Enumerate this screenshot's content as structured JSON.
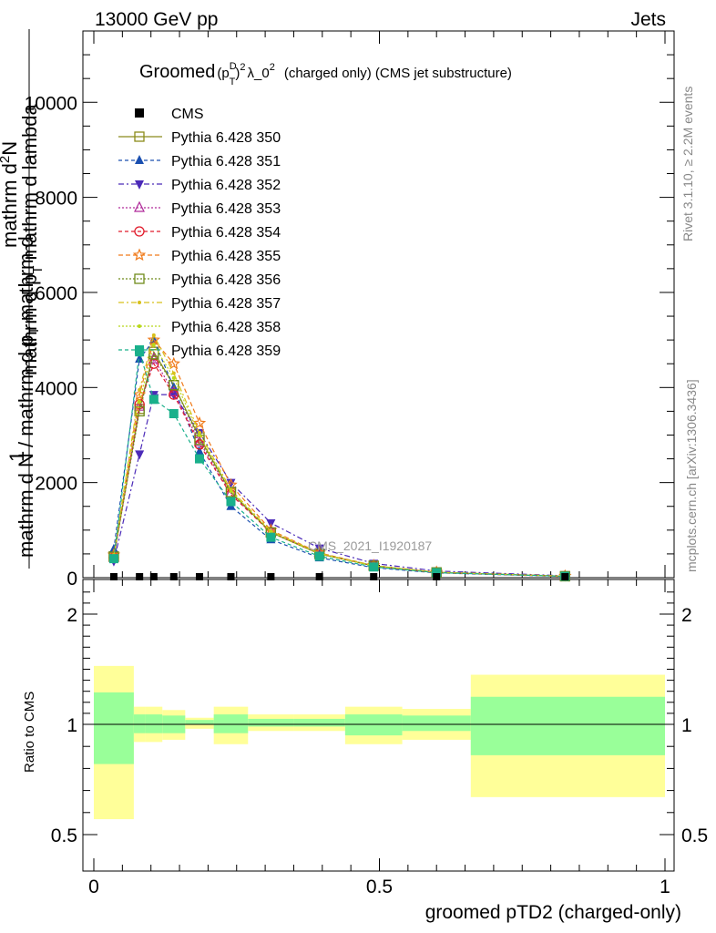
{
  "header": {
    "left": "13000 GeV pp",
    "right": "Jets"
  },
  "plot_title": {
    "prefix": "Groomed",
    "formula": "(p",
    "sup_D": "D",
    "sub_T": "T",
    "close": ")",
    "sup_2": "2",
    "lambda": "λ_0",
    "sup_2b": "2",
    "suffix": "(charged only) (CMS jet substructure)"
  },
  "side_labels": {
    "rivet": "Rivet 3.1.10, ≥ 2.2M events",
    "mcplots": "mcplots.cern.ch [arXiv:1306.3436]"
  },
  "watermark": "CMS_2021_I1920187",
  "y_axis_main": {
    "numerator_one": "1",
    "line1": "mathrm d",
    "sup2": "2",
    "line1b": "N",
    "line2": "mathrm d p",
    "line2sub": "T",
    "line2b": " mathrm d lambda",
    "den_line1": "mathrm d N / mathrm d p",
    "den_sub": "T",
    "den_line1b": " mathrm d"
  },
  "ratio_axis": {
    "label": "Ratio to CMS"
  },
  "x_axis": {
    "label": "groomed pTD2 (charged-only)"
  },
  "legend": [
    {
      "label": "CMS",
      "color": "#000000",
      "marker": "square-filled",
      "dash": "none"
    },
    {
      "label": "Pythia 6.428 350",
      "color": "#8b8b1a",
      "marker": "square-open",
      "dash": "solid"
    },
    {
      "label": "Pythia 6.428 351",
      "color": "#1a4fb0",
      "marker": "triangle-up",
      "dash": "4,3"
    },
    {
      "label": "Pythia 6.428 352",
      "color": "#4b2ab8",
      "marker": "triangle-down",
      "dash": "6,3,2,3"
    },
    {
      "label": "Pythia 6.428 353",
      "color": "#b02a9a",
      "marker": "triangle-up-open",
      "dash": "2,2"
    },
    {
      "label": "Pythia 6.428 354",
      "color": "#e01a2a",
      "marker": "circle-open",
      "dash": "4,3"
    },
    {
      "label": "Pythia 6.428 355",
      "color": "#f07a1a",
      "marker": "star",
      "dash": "5,3"
    },
    {
      "label": "Pythia 6.428 356",
      "color": "#6f8b1a",
      "marker": "square-open",
      "dash": "2,2"
    },
    {
      "label": "Pythia 6.428 357",
      "color": "#d8c01a",
      "marker": "dot",
      "dash": "6,3,2,3"
    },
    {
      "label": "Pythia 6.428 358",
      "color": "#b8d81a",
      "marker": "dot",
      "dash": "2,2"
    },
    {
      "label": "Pythia 6.428 359",
      "color": "#1ab08b",
      "marker": "square-filled",
      "dash": "4,3"
    }
  ],
  "chart_data": {
    "type": "line",
    "x": [
      0.035,
      0.08,
      0.105,
      0.14,
      0.185,
      0.24,
      0.31,
      0.395,
      0.49,
      0.6,
      0.825
    ],
    "ylim": [
      0,
      11500
    ],
    "xlim": [
      -0.03,
      1.0
    ],
    "y_ticks": [
      0,
      2000,
      4000,
      6000,
      8000,
      10000
    ],
    "y_tick_labels": [
      "0",
      "2000",
      "4000",
      "6000",
      "8000",
      "10000"
    ],
    "x_ticks": [
      0,
      0.5,
      1
    ],
    "x_tick_labels": [
      "0",
      "0.5",
      "1"
    ],
    "cms_values": [
      20,
      20,
      20,
      20,
      20,
      20,
      20,
      20,
      20,
      20,
      20
    ],
    "series": [
      {
        "name": "Pythia 6.428 350",
        "values": [
          450,
          3550,
          4750,
          4050,
          2950,
          1800,
          950,
          500,
          250,
          110,
          30
        ]
      },
      {
        "name": "Pythia 6.428 351",
        "values": [
          600,
          4600,
          5000,
          4000,
          2650,
          1500,
          800,
          420,
          210,
          100,
          25
        ]
      },
      {
        "name": "Pythia 6.428 352",
        "values": [
          350,
          2600,
          3850,
          3850,
          3050,
          2000,
          1150,
          620,
          300,
          140,
          40
        ]
      },
      {
        "name": "Pythia 6.428 353",
        "values": [
          420,
          3600,
          4600,
          3900,
          2850,
          1780,
          960,
          510,
          250,
          110,
          30
        ]
      },
      {
        "name": "Pythia 6.428 354",
        "values": [
          420,
          3650,
          4500,
          3850,
          2800,
          1750,
          950,
          500,
          245,
          110,
          30
        ]
      },
      {
        "name": "Pythia 6.428 355",
        "values": [
          480,
          3850,
          5000,
          4500,
          3250,
          1950,
          1000,
          520,
          255,
          115,
          32
        ]
      },
      {
        "name": "Pythia 6.428 356",
        "values": [
          440,
          3500,
          4700,
          4050,
          2900,
          1800,
          950,
          500,
          250,
          110,
          30
        ]
      },
      {
        "name": "Pythia 6.428 357",
        "values": [
          480,
          3950,
          5100,
          4300,
          3050,
          1850,
          980,
          510,
          250,
          112,
          31
        ]
      },
      {
        "name": "Pythia 6.428 358",
        "values": [
          470,
          3700,
          4900,
          4200,
          3000,
          1820,
          960,
          505,
          248,
          111,
          30
        ]
      },
      {
        "name": "Pythia 6.428 359",
        "values": [
          400,
          4750,
          3750,
          3450,
          2500,
          1600,
          850,
          450,
          225,
          105,
          28
        ]
      }
    ],
    "ratio": {
      "ylim": [
        0.4,
        2.3
      ],
      "y_ticks": [
        0.5,
        1,
        2
      ],
      "y_tick_labels": [
        "0.5",
        "1",
        "2"
      ],
      "bin_edges": [
        0,
        0.07,
        0.09,
        0.12,
        0.16,
        0.21,
        0.27,
        0.35,
        0.44,
        0.54,
        0.66,
        1.0
      ],
      "yellow_low": [
        0.57,
        0.92,
        0.92,
        0.93,
        0.98,
        0.91,
        0.97,
        0.97,
        0.91,
        0.93,
        0.67
      ],
      "yellow_high": [
        1.53,
        1.16,
        1.16,
        1.13,
        1.06,
        1.16,
        1.09,
        1.09,
        1.16,
        1.14,
        1.45
      ],
      "green_low": [
        0.82,
        0.96,
        0.96,
        0.96,
        1.0,
        0.96,
        0.99,
        0.99,
        0.95,
        0.97,
        0.86
      ],
      "green_high": [
        1.29,
        1.09,
        1.09,
        1.08,
        1.04,
        1.09,
        1.05,
        1.05,
        1.09,
        1.08,
        1.25
      ]
    }
  }
}
